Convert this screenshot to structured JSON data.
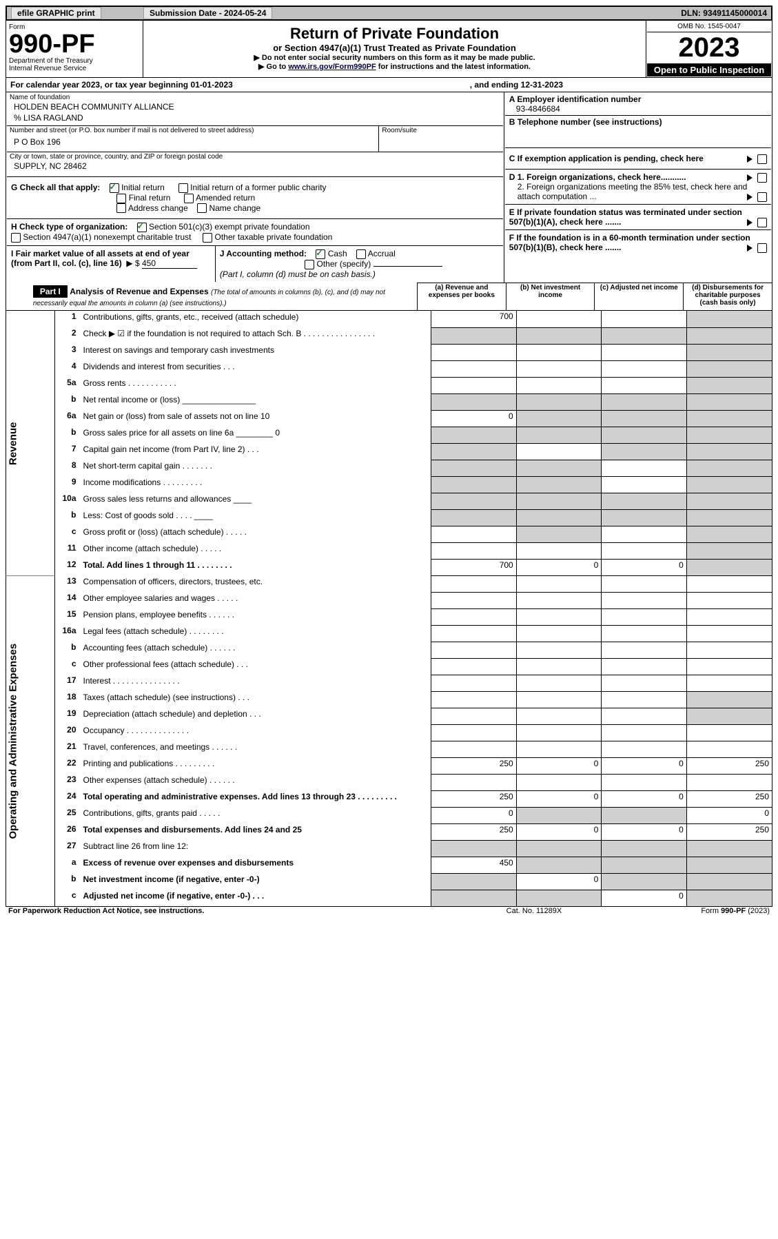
{
  "topbar": {
    "efile": "efile GRAPHIC print",
    "subm_label": "Submission Date - 2024-05-24",
    "dln": "DLN: 93491145000014"
  },
  "head": {
    "form": "Form",
    "formno": "990-PF",
    "dept1": "Department of the Treasury",
    "dept2": "Internal Revenue Service",
    "title": "Return of Private Foundation",
    "sub": "or Section 4947(a)(1) Trust Treated as Private Foundation",
    "i1": "▶ Do not enter social security numbers on this form as it may be made public.",
    "i2": "▶ Go to www.irs.gov/Form990PF for instructions and the latest information.",
    "i2_link": "www.irs.gov/Form990PF",
    "omb": "OMB No. 1545-0047",
    "year": "2023",
    "obp": "Open to Public Inspection"
  },
  "cal": {
    "text": "For calendar year 2023, or tax year beginning 01-01-2023",
    "end": ", and ending 12-31-2023"
  },
  "ent": {
    "name_l": "Name of foundation",
    "name": "HOLDEN BEACH COMMUNITY ALLIANCE",
    "care": "% LISA RAGLAND",
    "addr_l": "Number and street (or P.O. box number if mail is not delivered to street address)",
    "addr": "P O Box 196",
    "room_l": "Room/suite",
    "city_l": "City or town, state or province, country, and ZIP or foreign postal code",
    "city": "SUPPLY, NC  28462",
    "a_l": "A Employer identification number",
    "a_v": "93-4846684",
    "b_l": "B Telephone number (see instructions)",
    "c_l": "C If exemption application is pending, check here",
    "d1_l": "D 1. Foreign organizations, check here...........",
    "d2_l": "2. Foreign organizations meeting the 85% test, check here and attach computation ...",
    "e_l": "E  If private foundation status was terminated under section 507(b)(1)(A), check here .......",
    "f_l": "F  If the foundation is in a 60-month termination under section 507(b)(1)(B), check here .......",
    "g_l": "G Check all that apply:",
    "g": {
      "init": "Initial return",
      "initfp": "Initial return of a former public charity",
      "final": "Final return",
      "amend": "Amended return",
      "addr": "Address change",
      "name": "Name change"
    },
    "h_l": "H Check type of organization:",
    "h": {
      "s501": "Section 501(c)(3) exempt private foundation",
      "s4947": "Section 4947(a)(1) nonexempt charitable trust",
      "other": "Other taxable private foundation"
    },
    "i_l": "I Fair market value of all assets at end of year (from Part II, col. (c), line 16)",
    "i_pre": "▶ $",
    "i_v": "450",
    "j_l": "J Accounting method:",
    "j": {
      "cash": "Cash",
      "accr": "Accrual",
      "oth": "Other (specify)",
      "note": "(Part I, column (d) must be on cash basis.)"
    }
  },
  "part1": {
    "label": "Part I",
    "title": "Analysis of Revenue and Expenses",
    "title2": "(The total of amounts in columns (b), (c), and (d) may not necessarily equal the amounts in column (a) (see instructions).)",
    "cols": {
      "a": "(a)   Revenue and expenses per books",
      "b": "(b)   Net investment income",
      "c": "(c)   Adjusted net income",
      "d": "(d)  Disbursements for charitable purposes (cash basis only)"
    },
    "side_rev": "Revenue",
    "side_exp": "Operating and Administrative Expenses"
  },
  "rows": [
    {
      "n": "1",
      "t": "Contributions, gifts, grants, etc., received (attach schedule)",
      "a": "700",
      "shade": [
        "d"
      ]
    },
    {
      "n": "2",
      "t": "Check ▶ ☑ if the foundation is not required to attach Sch. B   .  .  .  .  .  .  .  .  .  .  .  .  .  .  .  .",
      "shade": [
        "a",
        "b",
        "c",
        "d"
      ]
    },
    {
      "n": "3",
      "t": "Interest on savings and temporary cash investments",
      "shade": [
        "d"
      ]
    },
    {
      "n": "4",
      "t": "Dividends and interest from securities    .    .    .",
      "shade": [
        "d"
      ]
    },
    {
      "n": "5a",
      "t": "Gross rents    .    .    .    .    .    .    .    .    .    .    .",
      "shade": [
        "d"
      ]
    },
    {
      "n": "b",
      "t": "Net rental income or (loss)  ________________",
      "shade": [
        "a",
        "b",
        "c",
        "d"
      ]
    },
    {
      "n": "6a",
      "t": "Net gain or (loss) from sale of assets not on line 10",
      "a": "0",
      "shade": [
        "b",
        "c",
        "d"
      ]
    },
    {
      "n": "b",
      "t": "Gross sales price for all assets on line 6a ________ 0",
      "shade": [
        "a",
        "b",
        "c",
        "d"
      ]
    },
    {
      "n": "7",
      "t": "Capital gain net income (from Part IV, line 2)    .    .    .",
      "shade": [
        "a",
        "c",
        "d"
      ]
    },
    {
      "n": "8",
      "t": "Net short-term capital gain   .   .   .   .   .   .   .",
      "shade": [
        "a",
        "b",
        "d"
      ]
    },
    {
      "n": "9",
      "t": "Income modifications   .   .   .   .   .   .   .   .   .",
      "shade": [
        "a",
        "b",
        "d"
      ]
    },
    {
      "n": "10a",
      "t": "Gross sales less returns and allowances  ____",
      "shade": [
        "a",
        "b",
        "c",
        "d"
      ]
    },
    {
      "n": "b",
      "t": "Less: Cost of goods sold     .    .    .    .  ____",
      "shade": [
        "a",
        "b",
        "c",
        "d"
      ]
    },
    {
      "n": "c",
      "t": "Gross profit or (loss) (attach schedule)     .    .    .    .    .",
      "shade": [
        "b",
        "d"
      ]
    },
    {
      "n": "11",
      "t": "Other income (attach schedule)     .    .    .    .    .",
      "shade": [
        "d"
      ]
    },
    {
      "n": "12",
      "t": "Total. Add lines 1 through 11    .    .    .    .    .    .    .    .",
      "b2": true,
      "a": "700",
      "b": "0",
      "c": "0",
      "shade": [
        "d"
      ]
    },
    {
      "n": "13",
      "t": "Compensation of officers, directors, trustees, etc."
    },
    {
      "n": "14",
      "t": "Other employee salaries and wages   .   .   .   .   ."
    },
    {
      "n": "15",
      "t": "Pension plans, employee benefits   .   .   .   .   .   ."
    },
    {
      "n": "16a",
      "t": "Legal fees (attach schedule)  .   .   .   .   .   .   .   ."
    },
    {
      "n": "b",
      "t": "Accounting fees (attach schedule)  .   .   .   .   .   ."
    },
    {
      "n": "c",
      "t": "Other professional fees (attach schedule)     .    .    ."
    },
    {
      "n": "17",
      "t": "Interest  .  .  .  .  .  .  .  .  .  .  .  .  .  .  ."
    },
    {
      "n": "18",
      "t": "Taxes (attach schedule) (see instructions)      .    .    .",
      "shade": [
        "d"
      ]
    },
    {
      "n": "19",
      "t": "Depreciation (attach schedule) and depletion    .    .    .",
      "shade": [
        "d"
      ]
    },
    {
      "n": "20",
      "t": "Occupancy  .  .  .  .  .  .  .  .  .  .  .  .  .  ."
    },
    {
      "n": "21",
      "t": "Travel, conferences, and meetings  .   .   .   .   .   ."
    },
    {
      "n": "22",
      "t": "Printing and publications  .   .   .   .   .   .   .   .   .",
      "a": "250",
      "b": "0",
      "c": "0",
      "d": "250"
    },
    {
      "n": "23",
      "t": "Other expenses (attach schedule)   .   .   .   .   .   ."
    },
    {
      "n": "24",
      "t": "Total operating and administrative expenses. Add lines 13 through 23   .   .   .   .   .   .   .   .   .",
      "b2": true,
      "a": "250",
      "b": "0",
      "c": "0",
      "d": "250"
    },
    {
      "n": "25",
      "t": "Contributions, gifts, grants paid     .    .    .    .    .",
      "a": "0",
      "shade": [
        "b",
        "c"
      ],
      "d": "0"
    },
    {
      "n": "26",
      "t": "Total expenses and disbursements. Add lines 24 and 25",
      "b2": true,
      "a": "250",
      "b": "0",
      "c": "0",
      "d": "250"
    },
    {
      "n": "27",
      "t": "Subtract line 26 from line 12:",
      "shade": [
        "a",
        "b",
        "c",
        "d"
      ]
    },
    {
      "n": "a",
      "t": "Excess of revenue over expenses and disbursements",
      "b2": true,
      "a": "450",
      "shade": [
        "b",
        "c",
        "d"
      ]
    },
    {
      "n": "b",
      "t": "Net investment income (if negative, enter -0-)",
      "b2": true,
      "shade": [
        "a",
        "c",
        "d"
      ],
      "b": "0"
    },
    {
      "n": "c",
      "t": "Adjusted net income (if negative, enter -0-)    .    .    .",
      "b2": true,
      "shade": [
        "a",
        "b",
        "d"
      ],
      "c": "0"
    }
  ],
  "footer": {
    "left": "For Paperwork Reduction Act Notice, see instructions.",
    "cat": "Cat. No. 11289X",
    "right": "Form 990-PF (2023)"
  }
}
